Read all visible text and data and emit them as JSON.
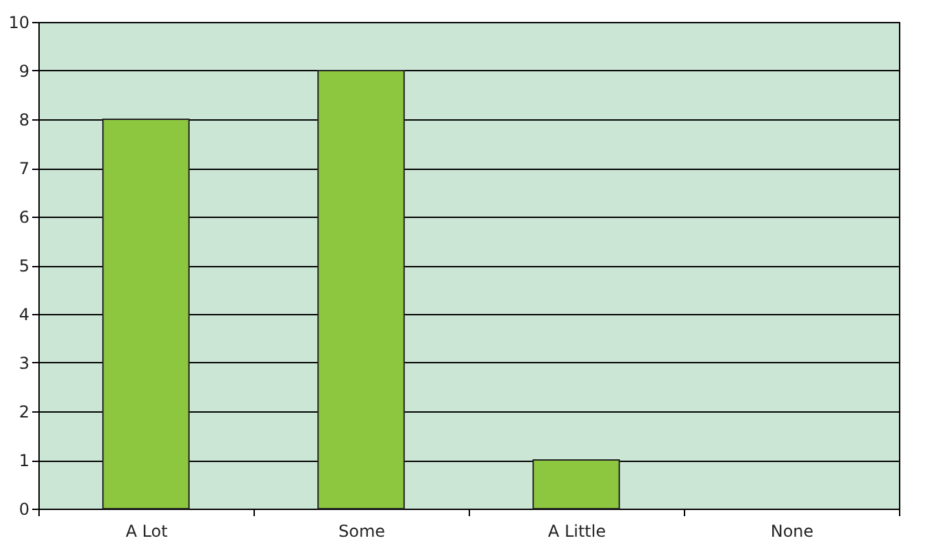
{
  "chart_data": {
    "type": "bar",
    "categories": [
      "A Lot",
      "Some",
      "A Little",
      "None"
    ],
    "series": [
      {
        "color": "#8dc63f",
        "values": [
          8,
          9,
          1,
          0
        ]
      }
    ],
    "ylim": [
      0,
      10
    ],
    "yticks": [
      0,
      1,
      2,
      3,
      4,
      5,
      6,
      7,
      8,
      9,
      10
    ],
    "grid": "y",
    "legend": false
  }
}
